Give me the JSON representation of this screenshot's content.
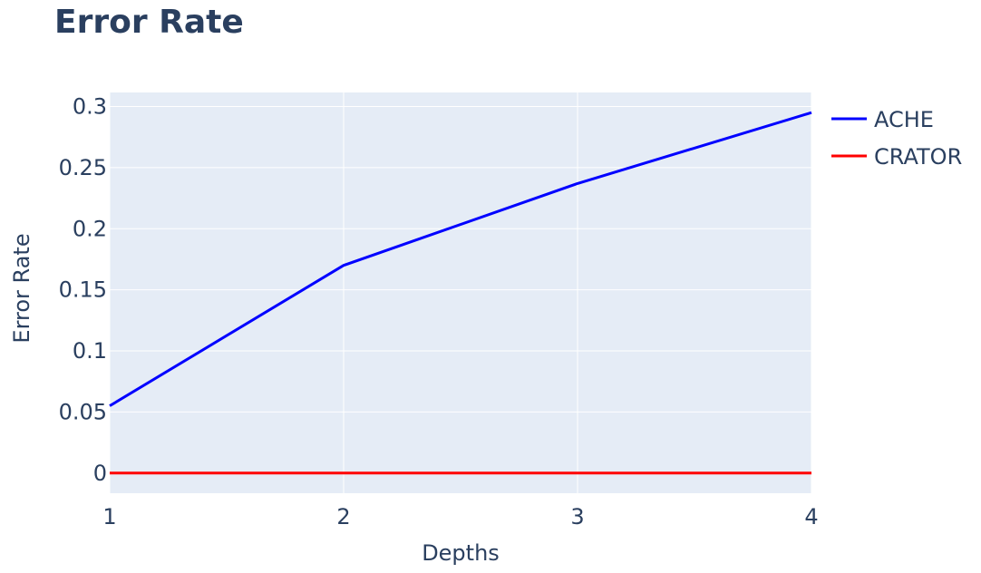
{
  "chart_data": {
    "type": "line",
    "title": "Error Rate",
    "xlabel": "Depths",
    "ylabel": "Error Rate",
    "x": [
      1,
      2,
      3,
      4
    ],
    "xlim": [
      1,
      4
    ],
    "ylim": [
      -0.0165,
      0.3115
    ],
    "xticks": [
      1,
      2,
      3,
      4
    ],
    "yticks": [
      0,
      0.05,
      0.1,
      0.15,
      0.2,
      0.25,
      0.3
    ],
    "ytick_labels": [
      "0",
      "0.05",
      "0.1",
      "0.15",
      "0.2",
      "0.25",
      "0.3"
    ],
    "grid": true,
    "legend_position": "top-right",
    "series": [
      {
        "name": "ACHE",
        "color": "#0000ff",
        "values": [
          0.055,
          0.17,
          0.237,
          0.295
        ]
      },
      {
        "name": "CRATOR",
        "color": "#ff0000",
        "values": [
          0,
          0,
          0,
          0
        ]
      }
    ],
    "plot_bg": "#e5ecf6",
    "grid_color": "#ffffff",
    "text_color": "#2a3f5f"
  }
}
